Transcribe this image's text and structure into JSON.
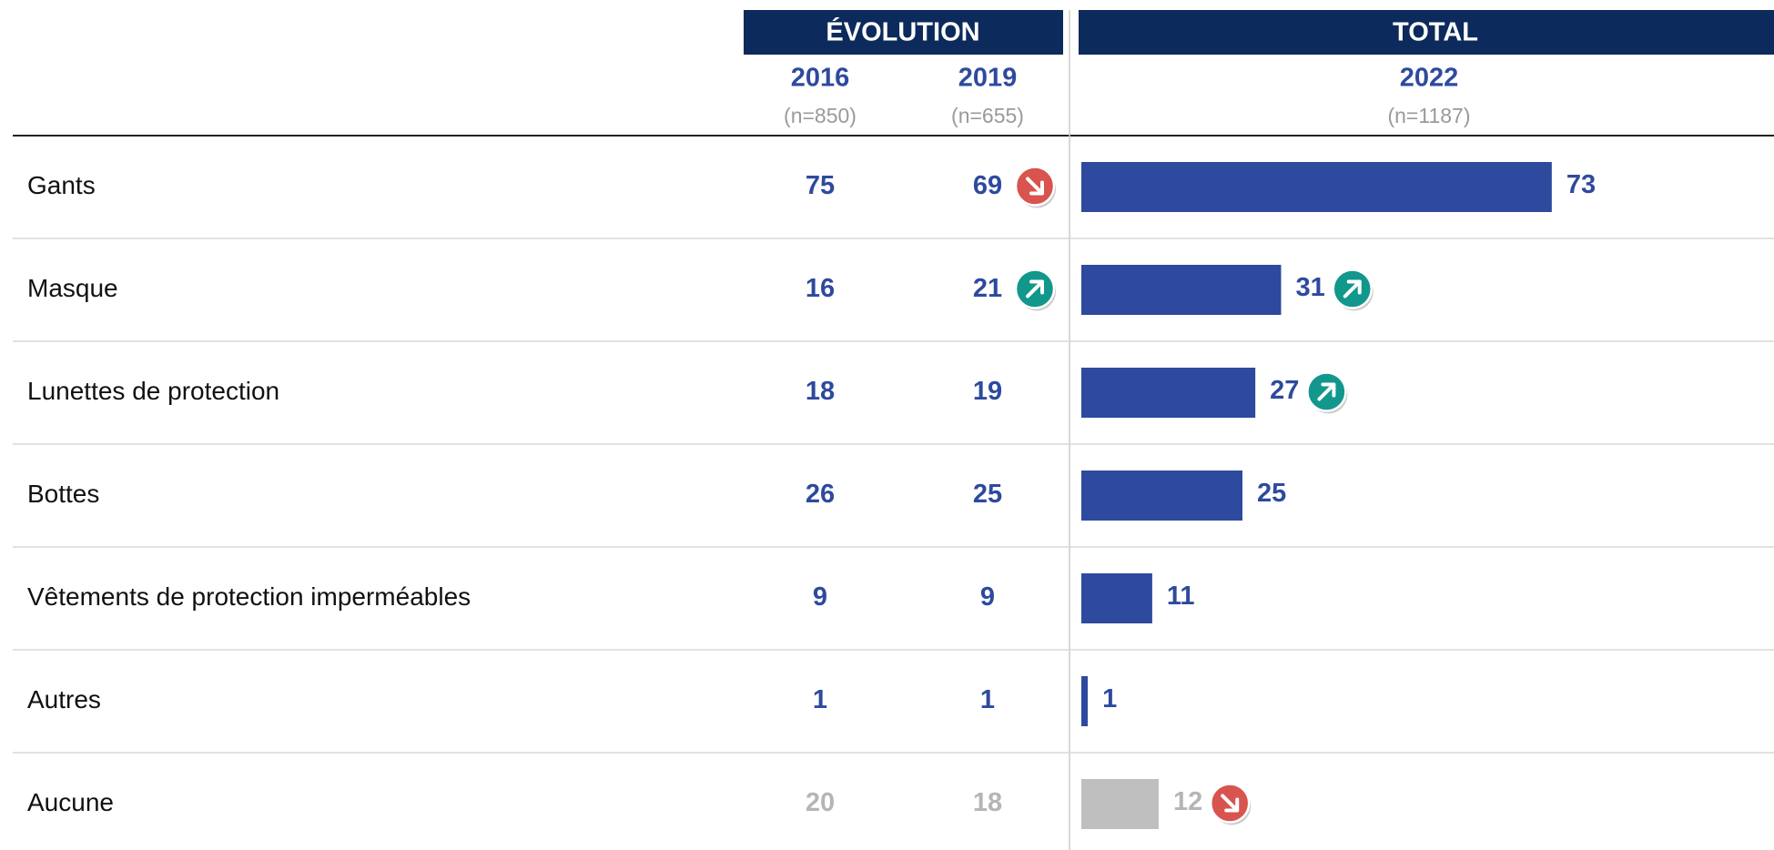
{
  "chart_data": {
    "type": "bar",
    "evolution_title": "ÉVOLUTION",
    "total_title": "TOTAL",
    "years": [
      "2016",
      "2019",
      "2022"
    ],
    "samples": [
      "(n=850)",
      "(n=655)",
      "(n=1187)"
    ],
    "color": "#2e4a9e",
    "muted_color": "#bfbfbf",
    "rows": [
      {
        "label": "Gants",
        "values": [
          75,
          69,
          73
        ],
        "trends": [
          null,
          "down",
          null
        ],
        "muted": false
      },
      {
        "label": "Masque",
        "values": [
          16,
          21,
          31
        ],
        "trends": [
          null,
          "up",
          "up"
        ],
        "muted": false
      },
      {
        "label": "Lunettes de protection",
        "values": [
          18,
          19,
          27
        ],
        "trends": [
          null,
          null,
          "up"
        ],
        "muted": false
      },
      {
        "label": "Bottes",
        "values": [
          26,
          25,
          25
        ],
        "trends": [
          null,
          null,
          null
        ],
        "muted": false
      },
      {
        "label": "Vêtements de protection imperméables",
        "values": [
          9,
          9,
          11
        ],
        "trends": [
          null,
          null,
          null
        ],
        "muted": false
      },
      {
        "label": "Autres",
        "values": [
          1,
          1,
          1
        ],
        "trends": [
          null,
          null,
          null
        ],
        "muted": false
      },
      {
        "label": "Aucune",
        "values": [
          20,
          18,
          12
        ],
        "trends": [
          null,
          null,
          "down"
        ],
        "muted": true
      }
    ]
  }
}
